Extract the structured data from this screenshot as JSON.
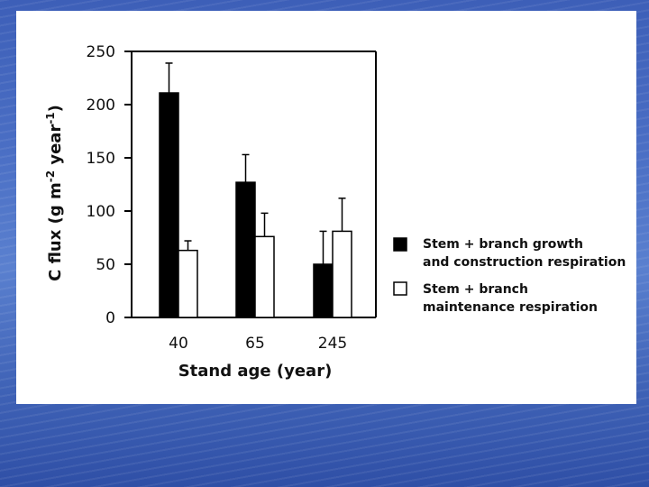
{
  "chart_data": {
    "type": "bar",
    "title": "",
    "xlabel": "Stand age (year)",
    "ylabel": "C flux (g m",
    "ylabel_sup1": "-2",
    "ylabel_mid": " year",
    "ylabel_sup2": "-1",
    "ylabel_end": ")",
    "ylim": [
      0,
      250
    ],
    "yticks": [
      0,
      50,
      100,
      150,
      200,
      250
    ],
    "categories": [
      "40",
      "65",
      "245"
    ],
    "series": [
      {
        "name_line1": "Stem + branch growth",
        "name_line2": "and construction respiration",
        "fill": "#000000",
        "values": [
          211,
          127,
          50
        ],
        "errors": [
          28,
          26,
          31
        ]
      },
      {
        "name_line1": "Stem + branch",
        "name_line2": "maintenance respiration",
        "fill": "#ffffff",
        "values": [
          63,
          76,
          81
        ],
        "errors": [
          9,
          22,
          31
        ]
      }
    ],
    "legend_position": "right"
  }
}
